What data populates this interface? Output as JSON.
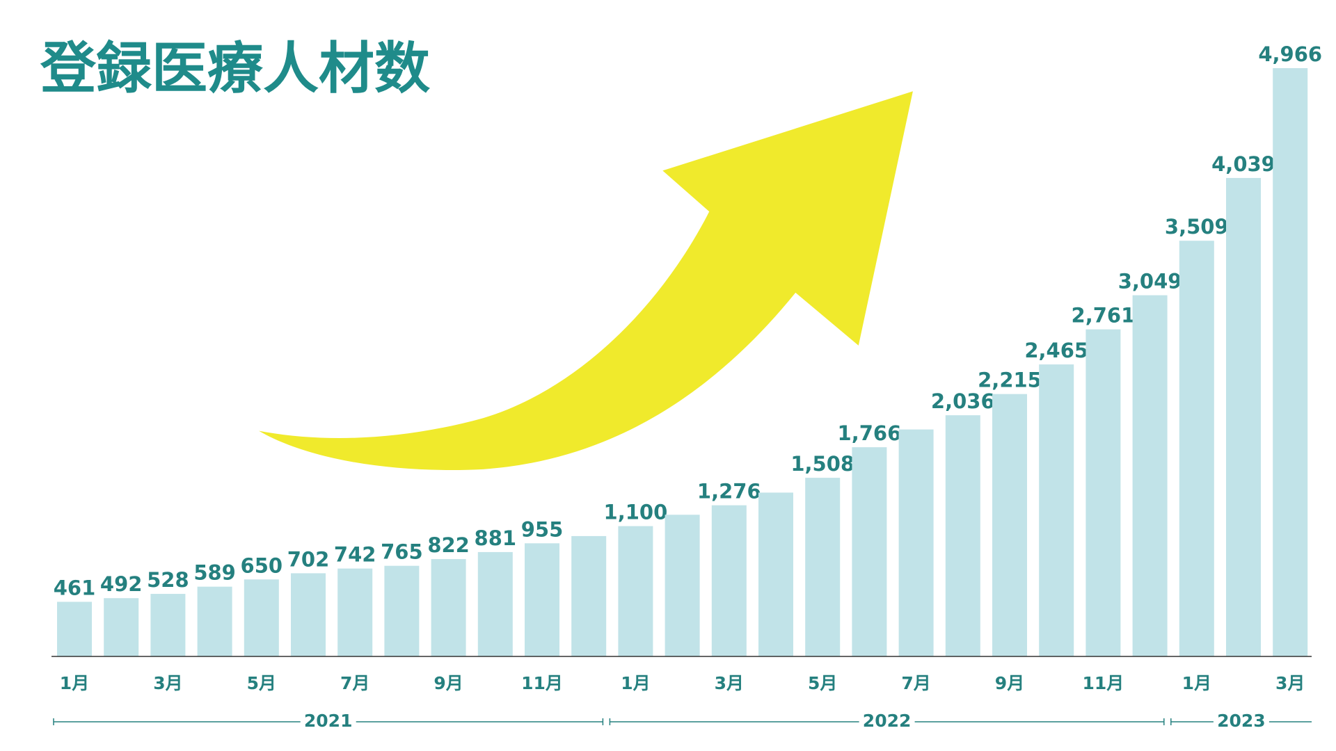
{
  "chart_data": {
    "type": "bar",
    "title": "登録医療人材数",
    "categories": [
      "1月",
      null,
      "3月",
      null,
      "5月",
      null,
      "7月",
      null,
      "9月",
      null,
      "11月",
      null,
      "1月",
      null,
      "3月",
      null,
      "5月",
      null,
      "7月",
      null,
      "9月",
      null,
      "11月",
      null,
      "1月",
      null,
      "3月"
    ],
    "values": [
      461,
      492,
      528,
      589,
      650,
      702,
      742,
      765,
      822,
      881,
      955,
      1016,
      1100,
      1196,
      1276,
      1383,
      1508,
      1766,
      1916,
      2036,
      2215,
      2465,
      2761,
      3049,
      3509,
      4039,
      4966
    ],
    "value_labels": [
      "461",
      "492",
      "528",
      "589",
      "650",
      "702",
      "742",
      "765",
      "822",
      "881",
      "955",
      null,
      "1,100",
      null,
      "1,276",
      null,
      "1,508",
      "1,766",
      null,
      "2,036",
      "2,215",
      "2,465",
      "2,761",
      "3,049",
      "3,509",
      "4,039",
      "4,966"
    ],
    "groups": [
      {
        "name": "2021",
        "span": 12
      },
      {
        "name": "2022",
        "span": 12
      },
      {
        "name": "2023",
        "span": 3
      }
    ],
    "color": "#c1e3e8",
    "label_color": "#25807f"
  }
}
